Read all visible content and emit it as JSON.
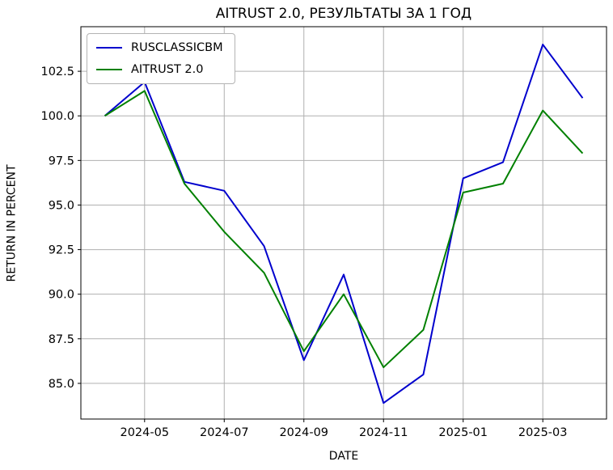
{
  "title": "AITRUST 2.0, РЕЗУЛЬТАТЫ ЗА 1 ГОД",
  "chart_data": {
    "type": "line",
    "title": "AITRUST 2.0, РЕЗУЛЬТАТЫ ЗА 1 ГОД",
    "xlabel": "DATE",
    "ylabel": "RETURN IN PERCENT",
    "x": [
      "2024-04",
      "2024-05",
      "2024-06",
      "2024-07",
      "2024-08",
      "2024-09",
      "2024-10",
      "2024-11",
      "2024-12",
      "2025-01",
      "2025-02",
      "2025-03",
      "2025-04"
    ],
    "series": [
      {
        "name": "RUSCLASSICBM",
        "color": "#0000cd",
        "values": [
          100.0,
          101.9,
          96.3,
          95.8,
          92.7,
          86.3,
          91.1,
          83.9,
          85.5,
          96.5,
          97.4,
          104.0,
          101.0
        ]
      },
      {
        "name": "AITRUST 2.0",
        "color": "#008000",
        "values": [
          100.0,
          101.4,
          96.2,
          93.5,
          91.2,
          86.8,
          90.0,
          85.9,
          88.0,
          95.7,
          96.2,
          100.3,
          97.9
        ]
      }
    ],
    "ylim": [
      83.0,
      105.0
    ],
    "yticks": [
      85.0,
      87.5,
      90.0,
      92.5,
      95.0,
      97.5,
      100.0,
      102.5
    ],
    "xtick_labels": [
      "2024-05",
      "2024-07",
      "2024-09",
      "2024-11",
      "2025-01",
      "2025-03"
    ],
    "xtick_indices": [
      1,
      3,
      5,
      7,
      9,
      11
    ],
    "xlim_index": [
      -0.6,
      12.6
    ],
    "grid": true,
    "legend_position": "upper left",
    "grid_color": "#b0b0b0",
    "spine_color": "#000000"
  }
}
